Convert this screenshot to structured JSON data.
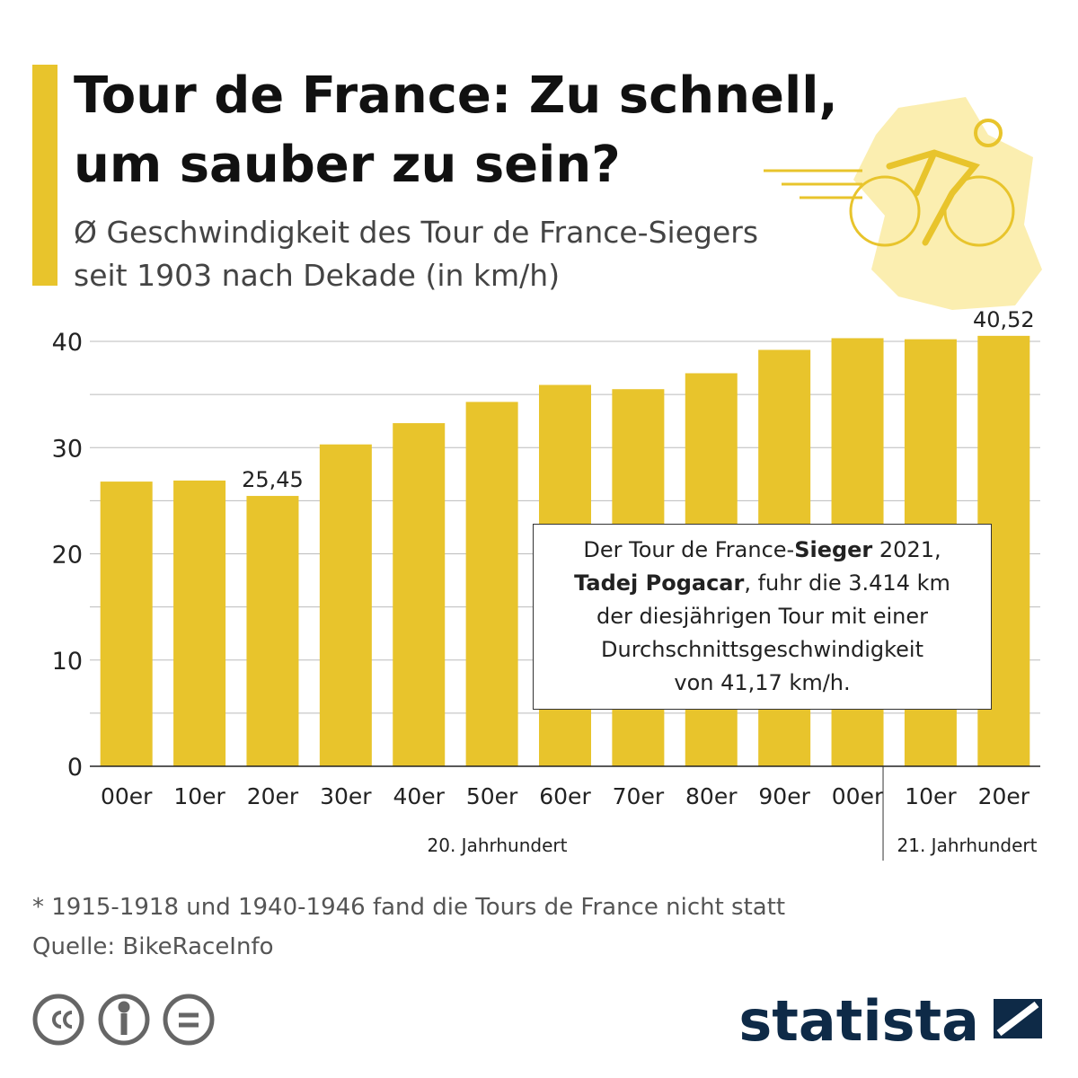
{
  "chart_data": {
    "type": "bar",
    "title": [
      "Tour de France: Zu schnell,",
      "um sauber zu sein?"
    ],
    "subtitle": [
      "Ø Geschwindigkeit des Tour de France-Siegers",
      "seit 1903 nach Dekade (in km/h)"
    ],
    "categories": [
      "00er",
      "10er",
      "20er",
      "30er",
      "40er",
      "50er",
      "60er",
      "70er",
      "80er",
      "90er",
      "00er",
      "10er",
      "20er"
    ],
    "values": [
      26.8,
      26.9,
      25.45,
      30.3,
      32.3,
      34.3,
      35.9,
      35.5,
      37.0,
      39.2,
      40.3,
      40.2,
      40.52
    ],
    "value_labels": [
      null,
      null,
      "25,45",
      null,
      null,
      null,
      null,
      null,
      null,
      null,
      null,
      null,
      "40,52"
    ],
    "color": "#e8c42c",
    "ylim": [
      0,
      42
    ],
    "yticks": [
      0,
      10,
      20,
      30,
      40
    ],
    "minor_yticks": [
      5,
      15,
      25,
      35
    ],
    "grid": true,
    "group_labels": [
      "20. Jahrhundert",
      "21. Jahrhundert"
    ],
    "annotation": [
      [
        {
          "text": "Der Tour de France-"
        },
        {
          "text": "Sieger",
          "bold": true
        },
        {
          "text": " 2021,"
        }
      ],
      [
        {
          "text": "Tadej Pogacar",
          "bold": true
        },
        {
          "text": ", fuhr die 3.414 km"
        }
      ],
      [
        {
          "text": "der diesjährigen Tour mit einer"
        }
      ],
      [
        {
          "text": "Durchschnittsgeschwindigkeit"
        }
      ],
      [
        {
          "text": "von 41,17 km/h."
        }
      ]
    ],
    "footnote": "* 1915-1918 und 1940-1946 fand die Tours de France nicht statt",
    "source": "Quelle: BikeRaceInfo",
    "brand": "statista"
  }
}
